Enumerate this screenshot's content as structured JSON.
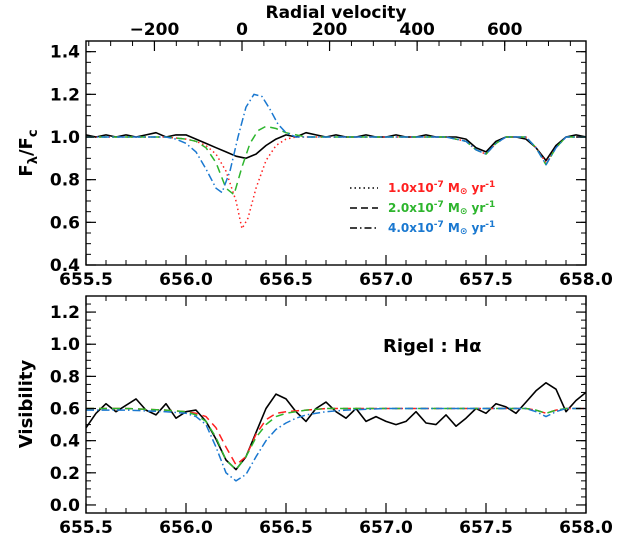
{
  "chart_data": [
    {
      "type": "line",
      "panel": "top",
      "top_axis_title": "Radial velocity",
      "top_ticks": [
        "−200",
        "0",
        "200",
        "400",
        "600"
      ],
      "top_tick_values": [
        -200,
        0,
        200,
        400,
        600
      ],
      "ylabel": "Fλ/Fc",
      "ylabel_main": "F",
      "ylabel_sub1": "λ",
      "ylabel_mid": "/F",
      "ylabel_sub2": "c",
      "xlim": [
        655.5,
        658.0
      ],
      "ylim": [
        0.4,
        1.45
      ],
      "x_ticks": [
        "655.5",
        "656.0",
        "656.5",
        "657.0",
        "657.5",
        "658.0"
      ],
      "x_tick_values": [
        655.5,
        656.0,
        656.5,
        657.0,
        657.5,
        658.0
      ],
      "y_ticks": [
        "0.4",
        "0.6",
        "0.8",
        "1.0",
        "1.2",
        "1.4"
      ],
      "y_tick_values": [
        0.4,
        0.6,
        0.8,
        1.0,
        1.2,
        1.4
      ],
      "legend_position": "center-right",
      "legend": [
        {
          "label": "1.0x10⁻⁷ M⊙ yr⁻¹",
          "mant": "1.0x10",
          "exp": "-7",
          "unit": " M",
          "sun": "⊙",
          "yr": " yr",
          "yrexp": "-1",
          "color": "#ff2020",
          "dash": "1.5,3"
        },
        {
          "label": "2.0x10⁻⁷ M⊙ yr⁻¹",
          "mant": "2.0x10",
          "exp": "-7",
          "unit": " M",
          "sun": "⊙",
          "yr": " yr",
          "yrexp": "-1",
          "color": "#2db52d",
          "dash": "7,4"
        },
        {
          "label": "4.0x10⁻⁷ M⊙ yr⁻¹",
          "mant": "4.0x10",
          "exp": "-7",
          "unit": " M",
          "sun": "⊙",
          "yr": " yr",
          "yrexp": "-1",
          "color": "#1a78d0",
          "dash": "7,3,1.5,3"
        }
      ],
      "series": [
        {
          "style": "solid",
          "color": "#000000",
          "x": [
            655.5,
            655.55,
            655.6,
            655.65,
            655.7,
            655.75,
            655.8,
            655.85,
            655.9,
            655.95,
            656.0,
            656.05,
            656.1,
            656.15,
            656.2,
            656.25,
            656.3,
            656.35,
            656.4,
            656.45,
            656.5,
            656.55,
            656.6,
            656.65,
            656.7,
            656.75,
            656.8,
            656.85,
            656.9,
            656.95,
            657.0,
            657.05,
            657.1,
            657.15,
            657.2,
            657.25,
            657.3,
            657.35,
            657.4,
            657.45,
            657.5,
            657.55,
            657.6,
            657.65,
            657.7,
            657.75,
            657.8,
            657.85,
            657.9,
            657.95,
            658.0
          ],
          "y": [
            1.01,
            1.0,
            1.01,
            1.0,
            1.01,
            1.0,
            1.01,
            1.02,
            1.0,
            1.01,
            1.01,
            0.99,
            0.97,
            0.95,
            0.93,
            0.91,
            0.9,
            0.92,
            0.96,
            0.99,
            1.01,
            1.0,
            1.02,
            1.01,
            1.0,
            1.01,
            1.0,
            1.0,
            1.01,
            1.0,
            1.0,
            1.01,
            1.0,
            1.0,
            1.01,
            1.0,
            1.0,
            1.0,
            0.99,
            0.95,
            0.93,
            0.98,
            1.0,
            1.0,
            0.99,
            0.95,
            0.89,
            0.96,
            1.0,
            1.01,
            1.0
          ]
        },
        {
          "style": "dotted",
          "color": "#ff2020",
          "x": [
            655.5,
            655.7,
            655.9,
            656.0,
            656.05,
            656.1,
            656.15,
            656.2,
            656.25,
            656.28,
            656.31,
            656.35,
            656.4,
            656.45,
            656.5,
            656.55,
            656.6,
            656.7,
            657.0,
            657.3,
            657.4,
            657.45,
            657.5,
            657.55,
            657.6,
            657.7,
            657.75,
            657.8,
            657.85,
            657.9,
            658.0
          ],
          "y": [
            1.0,
            1.0,
            1.0,
            0.99,
            0.98,
            0.96,
            0.92,
            0.84,
            0.7,
            0.57,
            0.62,
            0.76,
            0.89,
            0.96,
            0.99,
            1.0,
            1.0,
            1.0,
            1.0,
            1.0,
            0.98,
            0.94,
            0.92,
            0.97,
            1.0,
            1.0,
            0.95,
            0.88,
            0.95,
            1.0,
            1.0
          ]
        },
        {
          "style": "dashed",
          "color": "#2db52d",
          "x": [
            655.5,
            655.7,
            655.9,
            656.0,
            656.05,
            656.1,
            656.15,
            656.2,
            656.24,
            656.28,
            656.32,
            656.36,
            656.4,
            656.45,
            656.5,
            656.6,
            656.7,
            657.0,
            657.3,
            657.4,
            657.45,
            657.5,
            657.55,
            657.6,
            657.7,
            657.75,
            657.8,
            657.85,
            657.9,
            658.0
          ],
          "y": [
            1.0,
            1.0,
            1.0,
            0.99,
            0.98,
            0.95,
            0.88,
            0.76,
            0.73,
            0.86,
            0.97,
            1.03,
            1.05,
            1.04,
            1.02,
            1.0,
            1.0,
            1.0,
            1.0,
            0.98,
            0.94,
            0.92,
            0.97,
            1.0,
            1.0,
            0.95,
            0.87,
            0.95,
            1.0,
            1.0
          ]
        },
        {
          "style": "dashdot",
          "color": "#1a78d0",
          "x": [
            655.5,
            655.7,
            655.9,
            655.95,
            656.0,
            656.05,
            656.1,
            656.15,
            656.18,
            656.22,
            656.26,
            656.3,
            656.34,
            656.38,
            656.42,
            656.46,
            656.5,
            656.55,
            656.6,
            656.7,
            657.0,
            657.3,
            657.4,
            657.45,
            657.5,
            657.55,
            657.6,
            657.7,
            657.75,
            657.8,
            657.85,
            657.9,
            658.0
          ],
          "y": [
            1.0,
            1.0,
            1.0,
            0.99,
            0.97,
            0.93,
            0.85,
            0.76,
            0.74,
            0.84,
            1.0,
            1.14,
            1.2,
            1.19,
            1.13,
            1.06,
            1.02,
            1.0,
            1.0,
            1.0,
            1.0,
            1.0,
            0.98,
            0.94,
            0.92,
            0.97,
            1.0,
            1.0,
            0.95,
            0.87,
            0.95,
            1.0,
            1.0
          ]
        }
      ]
    },
    {
      "type": "line",
      "panel": "bottom",
      "ylabel": "Visibility",
      "annotation_label": "Rigel : Hα",
      "xlim": [
        655.5,
        658.0
      ],
      "ylim": [
        -0.05,
        1.3
      ],
      "x_ticks": [
        "655.5",
        "656.0",
        "656.5",
        "657.0",
        "657.5",
        "658.0"
      ],
      "x_tick_values": [
        655.5,
        656.0,
        656.5,
        657.0,
        657.5,
        658.0
      ],
      "y_ticks": [
        "0.0",
        "0.2",
        "0.4",
        "0.6",
        "0.8",
        "1.0",
        "1.2"
      ],
      "y_tick_values": [
        0.0,
        0.2,
        0.4,
        0.6,
        0.8,
        1.0,
        1.2
      ],
      "series": [
        {
          "style": "solid",
          "color": "#000000",
          "x": [
            655.5,
            655.55,
            655.6,
            655.65,
            655.7,
            655.75,
            655.8,
            655.85,
            655.9,
            655.95,
            656.0,
            656.05,
            656.1,
            656.15,
            656.2,
            656.25,
            656.3,
            656.35,
            656.4,
            656.45,
            656.5,
            656.55,
            656.6,
            656.65,
            656.7,
            656.75,
            656.8,
            656.85,
            656.9,
            656.95,
            657.0,
            657.05,
            657.1,
            657.15,
            657.2,
            657.25,
            657.3,
            657.35,
            657.4,
            657.45,
            657.5,
            657.55,
            657.6,
            657.65,
            657.7,
            657.75,
            657.8,
            657.85,
            657.9,
            657.95,
            658.0
          ],
          "y": [
            0.48,
            0.57,
            0.63,
            0.58,
            0.62,
            0.66,
            0.59,
            0.56,
            0.63,
            0.54,
            0.58,
            0.59,
            0.52,
            0.41,
            0.28,
            0.22,
            0.3,
            0.45,
            0.6,
            0.69,
            0.66,
            0.58,
            0.52,
            0.6,
            0.64,
            0.58,
            0.54,
            0.6,
            0.52,
            0.55,
            0.52,
            0.5,
            0.52,
            0.58,
            0.51,
            0.5,
            0.56,
            0.49,
            0.54,
            0.6,
            0.57,
            0.63,
            0.61,
            0.57,
            0.64,
            0.71,
            0.76,
            0.72,
            0.58,
            0.65,
            0.7
          ]
        },
        {
          "style": "dashed",
          "color": "#ff2020",
          "x": [
            655.5,
            655.7,
            655.9,
            656.0,
            656.05,
            656.1,
            656.15,
            656.2,
            656.25,
            656.3,
            656.35,
            656.4,
            656.45,
            656.5,
            656.6,
            656.7,
            657.0,
            657.3,
            657.5,
            657.6,
            657.7,
            657.75,
            657.8,
            657.85,
            657.9,
            658.0
          ],
          "y": [
            0.6,
            0.6,
            0.59,
            0.58,
            0.57,
            0.55,
            0.48,
            0.36,
            0.25,
            0.3,
            0.44,
            0.53,
            0.57,
            0.58,
            0.59,
            0.6,
            0.6,
            0.6,
            0.6,
            0.6,
            0.6,
            0.59,
            0.57,
            0.59,
            0.6,
            0.6
          ]
        },
        {
          "style": "dashed",
          "color": "#2db52d",
          "x": [
            655.5,
            655.7,
            655.9,
            656.0,
            656.05,
            656.1,
            656.15,
            656.2,
            656.25,
            656.3,
            656.35,
            656.4,
            656.45,
            656.5,
            656.6,
            656.7,
            657.0,
            657.3,
            657.5,
            657.6,
            657.7,
            657.75,
            657.8,
            657.85,
            657.9,
            658.0
          ],
          "y": [
            0.6,
            0.6,
            0.59,
            0.58,
            0.56,
            0.52,
            0.42,
            0.28,
            0.22,
            0.3,
            0.42,
            0.5,
            0.55,
            0.57,
            0.59,
            0.6,
            0.6,
            0.6,
            0.6,
            0.6,
            0.6,
            0.59,
            0.57,
            0.59,
            0.6,
            0.6
          ]
        },
        {
          "style": "dashdot",
          "color": "#1a78d0",
          "x": [
            655.5,
            655.7,
            655.9,
            656.0,
            656.05,
            656.1,
            656.15,
            656.2,
            656.25,
            656.3,
            656.35,
            656.4,
            656.45,
            656.5,
            656.55,
            656.6,
            656.7,
            656.8,
            657.0,
            657.3,
            657.5,
            657.6,
            657.7,
            657.75,
            657.8,
            657.85,
            657.9,
            658.0
          ],
          "y": [
            0.59,
            0.59,
            0.58,
            0.57,
            0.55,
            0.5,
            0.36,
            0.2,
            0.15,
            0.19,
            0.3,
            0.4,
            0.47,
            0.51,
            0.54,
            0.56,
            0.58,
            0.59,
            0.6,
            0.6,
            0.6,
            0.6,
            0.6,
            0.58,
            0.55,
            0.58,
            0.6,
            0.6
          ]
        }
      ]
    }
  ]
}
